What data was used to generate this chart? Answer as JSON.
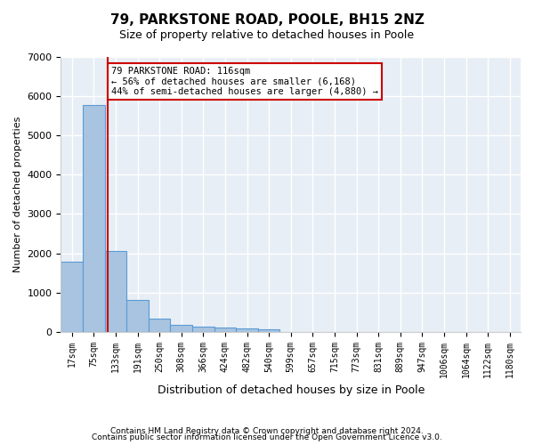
{
  "title1": "79, PARKSTONE ROAD, POOLE, BH15 2NZ",
  "title2": "Size of property relative to detached houses in Poole",
  "xlabel": "Distribution of detached houses by size in Poole",
  "ylabel": "Number of detached properties",
  "footer1": "Contains HM Land Registry data © Crown copyright and database right 2024.",
  "footer2": "Contains public sector information licensed under the Open Government Licence v3.0.",
  "bin_labels": [
    "17sqm",
    "75sqm",
    "133sqm",
    "191sqm",
    "250sqm",
    "308sqm",
    "366sqm",
    "424sqm",
    "482sqm",
    "540sqm",
    "599sqm",
    "657sqm",
    "715sqm",
    "773sqm",
    "831sqm",
    "889sqm",
    "947sqm",
    "1006sqm",
    "1064sqm",
    "1122sqm",
    "1180sqm"
  ],
  "bar_values": [
    1780,
    5780,
    2060,
    820,
    340,
    185,
    130,
    110,
    95,
    65,
    0,
    0,
    0,
    0,
    0,
    0,
    0,
    0,
    0,
    0,
    0
  ],
  "bar_color": "#a8c4e0",
  "bar_edge_color": "#5b9bd5",
  "background_color": "#e8eef5",
  "grid_color": "#ffffff",
  "property_label": "79 PARKSTONE ROAD: 116sqm",
  "annotation_line1": "← 56% of detached houses are smaller (6,168)",
  "annotation_line2": "44% of semi-detached houses are larger (4,880) →",
  "vline_color": "#cc0000",
  "vline_bin_index": 1.64,
  "annotation_box_color": "#cc0000",
  "ylim": [
    0,
    7000
  ],
  "yticks": [
    0,
    1000,
    2000,
    3000,
    4000,
    5000,
    6000,
    7000
  ]
}
